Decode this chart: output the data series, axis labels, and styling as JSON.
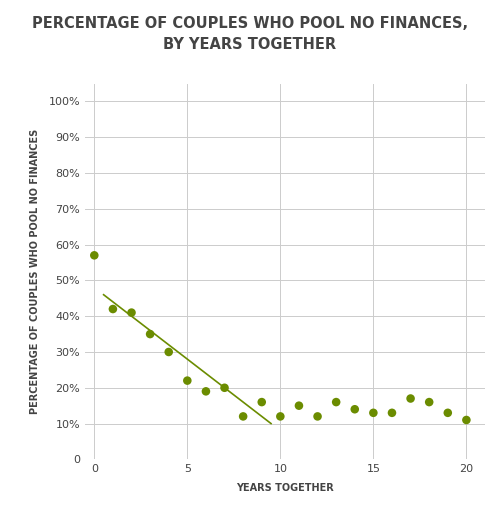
{
  "title": "PERCENTAGE OF COUPLES WHO POOL NO FINANCES,\nBY YEARS TOGETHER",
  "xlabel": "YEARS TOGETHER",
  "ylabel": "PERCENTAGE OF COUPLES WHO POOL NO FINANCES",
  "background_color": "#ffffff",
  "dot_color": "#6b8c00",
  "line_color": "#6b8c00",
  "scatter_x": [
    0,
    1,
    2,
    3,
    4,
    5,
    6,
    7,
    8,
    9,
    10,
    11,
    12,
    13,
    14,
    15,
    16,
    17,
    18,
    19,
    20
  ],
  "scatter_y": [
    0.57,
    0.42,
    0.41,
    0.35,
    0.3,
    0.22,
    0.19,
    0.2,
    0.12,
    0.16,
    0.12,
    0.15,
    0.12,
    0.16,
    0.14,
    0.13,
    0.13,
    0.17,
    0.16,
    0.13,
    0.11
  ],
  "trend_x_start": 0.5,
  "trend_x_end": 9.5,
  "trend_y_start": 0.46,
  "trend_y_end": 0.1,
  "xlim": [
    -0.5,
    21
  ],
  "ylim": [
    0,
    1.05
  ],
  "yticks": [
    0,
    0.1,
    0.2,
    0.3,
    0.4,
    0.5,
    0.6,
    0.7,
    0.8,
    0.9,
    1.0
  ],
  "xticks": [
    0,
    5,
    10,
    15,
    20
  ],
  "title_fontsize": 10.5,
  "axis_label_fontsize": 7,
  "tick_fontsize": 8,
  "dot_size": 38,
  "grid_color": "#cccccc",
  "text_color": "#444444"
}
